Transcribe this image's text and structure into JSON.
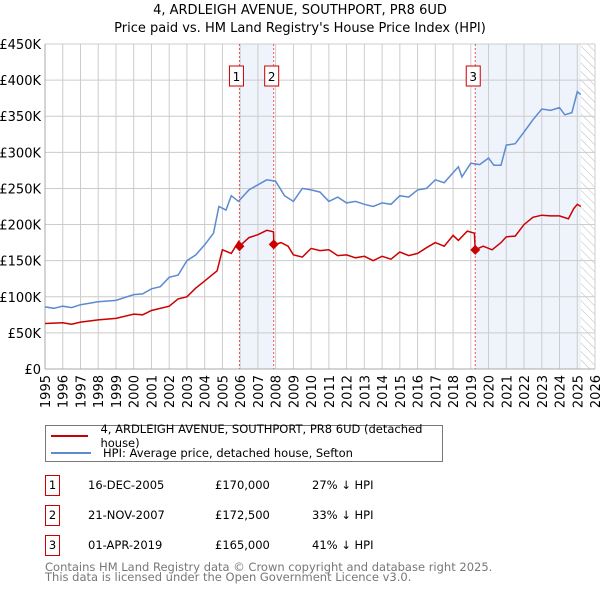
{
  "title": "4, ARDLEIGH AVENUE, SOUTHPORT, PR8 6UD",
  "subtitle": "Price paid vs. HM Land Registry's House Price Index (HPI)",
  "colors": {
    "property": "#cc0000",
    "hpi": "#5b8bd0",
    "shade": "#eef3fc",
    "grid": "#cccccc"
  },
  "chart_data": {
    "type": "line",
    "title": "4, ARDLEIGH AVENUE, SOUTHPORT, PR8 6UD",
    "subtitle": "Price paid vs. HM Land Registry's House Price Index (HPI)",
    "xlim": [
      1995,
      2026
    ],
    "ylim": [
      0,
      450
    ],
    "y_ticks": [
      {
        "v": 0,
        "label": "£0"
      },
      {
        "v": 50,
        "label": "£50K"
      },
      {
        "v": 100,
        "label": "£100K"
      },
      {
        "v": 150,
        "label": "£150K"
      },
      {
        "v": 200,
        "label": "£200K"
      },
      {
        "v": 250,
        "label": "£250K"
      },
      {
        "v": 300,
        "label": "£300K"
      },
      {
        "v": 350,
        "label": "£350K"
      },
      {
        "v": 400,
        "label": "£400K"
      },
      {
        "v": 450,
        "label": "£450K"
      }
    ],
    "x_ticks": [
      "1995",
      "1996",
      "1997",
      "1998",
      "1999",
      "2000",
      "2001",
      "2002",
      "2003",
      "2004",
      "2005",
      "2006",
      "2007",
      "2008",
      "2009",
      "2010",
      "2011",
      "2012",
      "2013",
      "2014",
      "2015",
      "2016",
      "2017",
      "2018",
      "2019",
      "2020",
      "2021",
      "2022",
      "2023",
      "2024",
      "2025",
      "2026"
    ],
    "grid": true,
    "series": [
      {
        "name": "4, ARDLEIGH AVENUE, SOUTHPORT, PR8 6UD (detached house)",
        "color": "#cc0000",
        "x": [
          1995,
          1996,
          1996.5,
          1997,
          1998,
          1999,
          2000,
          2000.5,
          2001,
          2002,
          2002.5,
          2003,
          2003.5,
          2004,
          2004.7,
          2005,
          2005.5,
          2005.9,
          2005.96,
          2006.5,
          2007,
          2007.5,
          2007.88,
          2007.9,
          2008.3,
          2008.7,
          2009,
          2009.5,
          2010,
          2010.5,
          2011,
          2011.5,
          2012,
          2012.5,
          2013,
          2013.5,
          2014,
          2014.5,
          2015,
          2015.5,
          2016,
          2016.5,
          2017,
          2017.5,
          2018,
          2018.3,
          2018.8,
          2019.2,
          2019.25,
          2019.7,
          2020.2,
          2020.7,
          2021,
          2021.5,
          2022,
          2022.5,
          2023,
          2023.5,
          2024,
          2024.5,
          2024.8,
          2025,
          2025.2
        ],
        "y": [
          63,
          64,
          62,
          65,
          68,
          70,
          76,
          75,
          81,
          87,
          97,
          100,
          112,
          122,
          136,
          165,
          160,
          176,
          170,
          182,
          186,
          192,
          190,
          172,
          175,
          170,
          158,
          155,
          167,
          164,
          165,
          157,
          158,
          154,
          156,
          150,
          156,
          152,
          162,
          157,
          160,
          168,
          175,
          170,
          185,
          178,
          191,
          188,
          165,
          170,
          165,
          175,
          183,
          184,
          200,
          210,
          213,
          212,
          212,
          208,
          222,
          228,
          225
        ]
      },
      {
        "name": "HPI: Average price, detached house, Sefton",
        "color": "#5b8bd0",
        "x": [
          1995,
          1995.5,
          1996,
          1996.5,
          1997,
          1998,
          1999,
          2000,
          2000.5,
          2001,
          2001.5,
          2002,
          2002.5,
          2003,
          2003.5,
          2004,
          2004.5,
          2004.8,
          2005.2,
          2005.5,
          2005.9,
          2006.5,
          2007,
          2007.5,
          2008,
          2008.5,
          2009,
          2009.5,
          2010,
          2010.5,
          2011,
          2011.5,
          2012,
          2012.5,
          2013,
          2013.5,
          2014,
          2014.5,
          2015,
          2015.5,
          2016,
          2016.5,
          2017,
          2017.5,
          2018,
          2018.3,
          2018.5,
          2019,
          2019.5,
          2020,
          2020.3,
          2020.7,
          2021,
          2021.5,
          2022,
          2022.5,
          2023,
          2023.5,
          2024,
          2024.3,
          2024.7,
          2025,
          2025.2
        ],
        "y": [
          86,
          84,
          87,
          85,
          89,
          93,
          95,
          103,
          104,
          111,
          114,
          127,
          130,
          150,
          158,
          172,
          188,
          225,
          220,
          240,
          232,
          248,
          255,
          262,
          260,
          240,
          232,
          250,
          248,
          245,
          232,
          238,
          230,
          232,
          228,
          225,
          230,
          228,
          240,
          238,
          248,
          250,
          262,
          258,
          272,
          280,
          266,
          285,
          283,
          292,
          282,
          282,
          310,
          312,
          328,
          345,
          360,
          358,
          362,
          352,
          355,
          384,
          380
        ]
      }
    ],
    "sales": [
      {
        "id": "1",
        "x": 2005.96,
        "y": 170
      },
      {
        "id": "2",
        "x": 2007.89,
        "y": 172.5
      },
      {
        "id": "3",
        "x": 2019.25,
        "y": 165
      }
    ],
    "shaded": [
      [
        2005.96,
        2007.89
      ],
      [
        2019.25,
        2025.2
      ]
    ],
    "hatched_from": 2025.2,
    "legend_placement": "bottom"
  },
  "legend": {
    "property": "4, ARDLEIGH AVENUE, SOUTHPORT, PR8 6UD (detached house)",
    "hpi": "HPI: Average price, detached house, Sefton"
  },
  "transactions": [
    {
      "num": "1",
      "date": "16-DEC-2005",
      "price": "£170,000",
      "diff": "27% ↓ HPI"
    },
    {
      "num": "2",
      "date": "21-NOV-2007",
      "price": "£172,500",
      "diff": "33% ↓ HPI"
    },
    {
      "num": "3",
      "date": "01-APR-2019",
      "price": "£165,000",
      "diff": "41% ↓ HPI"
    }
  ],
  "footer": {
    "line1": "Contains HM Land Registry data © Crown copyright and database right 2025.",
    "line2": "This data is licensed under the Open Government Licence v3.0."
  }
}
